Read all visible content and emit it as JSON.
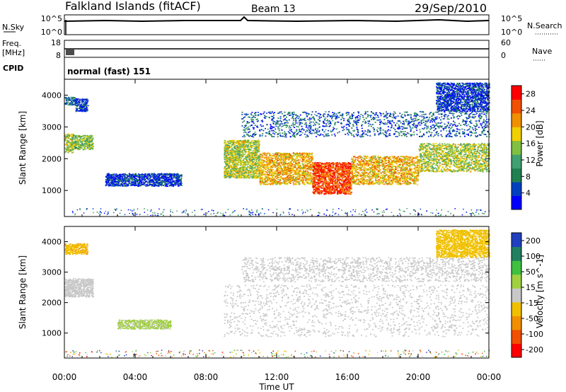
{
  "header": {
    "station": "Falkland Islands (fitACF)",
    "beam": "Beam 13",
    "date": "29/Sep/2010"
  },
  "strips": {
    "nsky": {
      "label": "N.Sky",
      "ticks": [
        "10^5",
        "10^0"
      ],
      "right_label": "N.Search",
      "right_ticks": [
        "10^5",
        "10^0"
      ]
    },
    "freq": {
      "label_line1": "Freq.",
      "label_line2": "[MHz]",
      "ticks": [
        "18",
        "8"
      ],
      "right_label": "Nave",
      "right_ticks": [
        "60",
        "0"
      ]
    },
    "cpid": {
      "label": "CPID",
      "value": "normal (fast) 151"
    }
  },
  "x_axis": {
    "label": "Time UT",
    "tick_labels": [
      "00:00",
      "04:00",
      "08:00",
      "12:00",
      "16:00",
      "20:00",
      "00:00"
    ],
    "hours": [
      0,
      4,
      8,
      12,
      16,
      20,
      24
    ]
  },
  "colors": {
    "power_scale": [
      "#0000ff",
      "#0040c0",
      "#208050",
      "#40a070",
      "#80c040",
      "#f0d000",
      "#f09000",
      "#f05000",
      "#ff0000"
    ],
    "velocity_scale": [
      "#ff0000",
      "#f05000",
      "#f09000",
      "#f0c000",
      "#c8c8c8",
      "#a0d040",
      "#40c040",
      "#208060",
      "#2040c0"
    ],
    "ground_scatter": "#c8c8c8"
  },
  "chart_data": [
    {
      "type": "heatmap",
      "title": "",
      "xlabel": "Time UT",
      "ylabel": "Slant Range [km]",
      "xlim": [
        0,
        24
      ],
      "ylim": [
        180,
        4500
      ],
      "yticks": [
        1000,
        2000,
        3000,
        4000
      ],
      "colorbar": {
        "label": "Power [dB]",
        "range": [
          0,
          30
        ],
        "ticks": [
          4,
          8,
          12,
          16,
          20,
          24,
          28
        ]
      },
      "regions": [
        {
          "t_start": 0.0,
          "t_end": 0.5,
          "r_start": 2200,
          "r_end": 2800,
          "level": 16
        },
        {
          "t_start": 0.5,
          "t_end": 1.6,
          "r_start": 2300,
          "r_end": 2750,
          "level": 14
        },
        {
          "t_start": 0.0,
          "t_end": 0.6,
          "r_start": 3700,
          "r_end": 3950,
          "level": 8
        },
        {
          "t_start": 0.6,
          "t_end": 1.3,
          "r_start": 3500,
          "r_end": 3900,
          "level": 4
        },
        {
          "t_start": 2.3,
          "t_end": 6.6,
          "r_start": 1150,
          "r_end": 1550,
          "level": 4
        },
        {
          "t_start": 9.0,
          "t_end": 11.0,
          "r_start": 1400,
          "r_end": 2600,
          "level": 16
        },
        {
          "t_start": 11.0,
          "t_end": 14.0,
          "r_start": 1200,
          "r_end": 2200,
          "level": 20
        },
        {
          "t_start": 14.0,
          "t_end": 16.2,
          "r_start": 900,
          "r_end": 1900,
          "level": 26
        },
        {
          "t_start": 16.2,
          "t_end": 20.0,
          "r_start": 1200,
          "r_end": 2100,
          "level": 20
        },
        {
          "t_start": 20.0,
          "t_end": 24.0,
          "r_start": 1600,
          "r_end": 2500,
          "level": 16
        },
        {
          "t_start": 10.0,
          "t_end": 24.0,
          "r_start": 2700,
          "r_end": 3500,
          "level": 6
        },
        {
          "t_start": 21.0,
          "t_end": 24.0,
          "r_start": 3500,
          "r_end": 4400,
          "level": 4
        }
      ]
    },
    {
      "type": "heatmap",
      "title": "",
      "xlabel": "Time UT",
      "ylabel": "Slant Range [km]",
      "xlim": [
        0,
        24
      ],
      "ylim": [
        180,
        4500
      ],
      "yticks": [
        1000,
        2000,
        3000,
        4000
      ],
      "colorbar": {
        "label": "Velocity [m s^-1]",
        "range": [
          -250,
          250
        ],
        "ticks": [
          200,
          100,
          50,
          15,
          -15,
          -50,
          -100,
          -200
        ]
      },
      "regions": [
        {
          "t_start": 0.0,
          "t_end": 1.6,
          "r_start": 2200,
          "r_end": 2800,
          "level": 0,
          "ground_scatter": true
        },
        {
          "t_start": 0.0,
          "t_end": 1.3,
          "r_start": 3600,
          "r_end": 3950,
          "level": -70
        },
        {
          "t_start": 3.0,
          "t_end": 6.0,
          "r_start": 1150,
          "r_end": 1450,
          "level": 40
        },
        {
          "t_start": 9.0,
          "t_end": 24.0,
          "r_start": 900,
          "r_end": 2600,
          "level": 0,
          "ground_scatter": true
        },
        {
          "t_start": 10.0,
          "t_end": 24.0,
          "r_start": 2700,
          "r_end": 3500,
          "level": 0,
          "ground_scatter": true
        },
        {
          "t_start": 21.0,
          "t_end": 24.0,
          "r_start": 3500,
          "r_end": 4400,
          "level": -60
        }
      ]
    }
  ]
}
